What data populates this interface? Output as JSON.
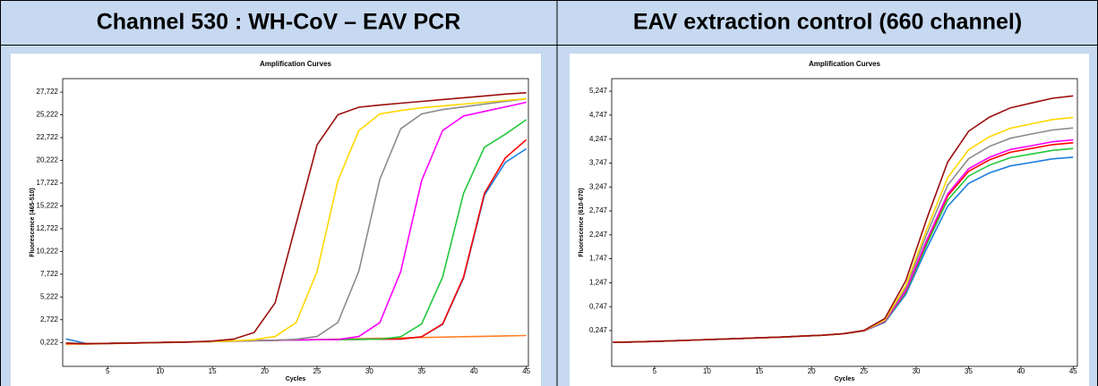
{
  "chart_data": [
    {
      "type": "line",
      "heading": "Channel 530 : WH-CoV – EAV PCR",
      "title": "Amplification Curves",
      "xlabel": "Cycles",
      "ylabel": "Fluorescence (465-510)",
      "x": [
        1,
        3,
        5,
        7,
        9,
        11,
        13,
        15,
        17,
        19,
        21,
        23,
        25,
        27,
        29,
        31,
        33,
        35,
        37,
        39,
        41,
        43,
        45
      ],
      "xlim": [
        0.7,
        45.2
      ],
      "xticks": [
        5,
        10,
        15,
        20,
        25,
        30,
        35,
        40,
        45
      ],
      "ylim": [
        -2400,
        29200
      ],
      "yticks": [
        {
          "value": 222,
          "label": "0,222"
        },
        {
          "value": 2722,
          "label": "2,722"
        },
        {
          "value": 5222,
          "label": "5,222"
        },
        {
          "value": 7722,
          "label": "7,722"
        },
        {
          "value": 10222,
          "label": "10,222"
        },
        {
          "value": 12722,
          "label": "12,722"
        },
        {
          "value": 15222,
          "label": "15,222"
        },
        {
          "value": 17722,
          "label": "17,722"
        },
        {
          "value": 20222,
          "label": "20,222"
        },
        {
          "value": 22722,
          "label": "22,722"
        },
        {
          "value": 25222,
          "label": "25,222"
        },
        {
          "value": 27722,
          "label": "27,722"
        }
      ],
      "series": [
        {
          "color": "#ff7f27",
          "values": [
            0,
            45,
            90,
            135,
            180,
            225,
            270,
            315,
            360,
            405,
            450,
            495,
            540,
            585,
            630,
            675,
            720,
            765,
            810,
            855,
            900,
            945,
            990
          ]
        },
        {
          "color": "#1e7fe0",
          "values": [
            600,
            100,
            120,
            160,
            200,
            240,
            280,
            330,
            380,
            430,
            470,
            500,
            520,
            540,
            560,
            580,
            600,
            845,
            2200,
            7300,
            16400,
            20000,
            21500
          ]
        },
        {
          "color": "#ff0000",
          "values": [
            150,
            80,
            120,
            160,
            200,
            240,
            280,
            330,
            380,
            430,
            470,
            500,
            520,
            540,
            560,
            580,
            600,
            845,
            2250,
            7400,
            16600,
            20500,
            22500
          ]
        },
        {
          "color": "#22c83c",
          "values": [
            150,
            80,
            120,
            160,
            200,
            240,
            280,
            330,
            380,
            430,
            470,
            500,
            520,
            540,
            560,
            580,
            845,
            2250,
            7400,
            16600,
            21660,
            23100,
            24700
          ]
        },
        {
          "color": "#ff00ff",
          "values": [
            150,
            80,
            120,
            160,
            200,
            240,
            280,
            330,
            380,
            430,
            470,
            500,
            520,
            540,
            875,
            2400,
            8000,
            18000,
            23500,
            25100,
            25600,
            26100,
            26600
          ]
        },
        {
          "color": "#8c8c8c",
          "values": [
            150,
            80,
            120,
            160,
            200,
            240,
            280,
            330,
            380,
            430,
            470,
            575,
            880,
            2415,
            8060,
            18140,
            23680,
            25320,
            25800,
            26100,
            26400,
            26700,
            27000
          ]
        },
        {
          "color": "#ffd700",
          "values": [
            150,
            80,
            120,
            160,
            200,
            240,
            280,
            330,
            400,
            525,
            875,
            2400,
            8000,
            18000,
            23500,
            25320,
            25700,
            26000,
            26200,
            26400,
            26600,
            26800,
            27000
          ]
        },
        {
          "color": "#9b0d0d",
          "values": [
            150,
            80,
            120,
            160,
            200,
            240,
            280,
            380,
            580,
            1320,
            4580,
            13250,
            21920,
            25240,
            26060,
            26300,
            26500,
            26700,
            26900,
            27100,
            27300,
            27500,
            27650
          ]
        }
      ]
    },
    {
      "type": "line",
      "heading": "EAV extraction control (660 channel)",
      "title": "Amplification Curves",
      "xlabel": "Cycles",
      "ylabel": "Fluorescence (610-670)",
      "x": [
        1,
        3,
        5,
        7,
        9,
        11,
        13,
        15,
        17,
        19,
        21,
        23,
        25,
        27,
        29,
        31,
        33,
        35,
        37,
        39,
        41,
        43,
        45
      ],
      "xlim": [
        0.9,
        45.4
      ],
      "xticks": [
        5,
        10,
        15,
        20,
        25,
        30,
        35,
        40,
        45
      ],
      "ylim": [
        -500,
        5510
      ],
      "yticks": [
        {
          "value": 247,
          "label": "0,247"
        },
        {
          "value": 747,
          "label": "0,747"
        },
        {
          "value": 1247,
          "label": "1,247"
        },
        {
          "value": 1747,
          "label": "1,747"
        },
        {
          "value": 2247,
          "label": "2,247"
        },
        {
          "value": 2747,
          "label": "2,747"
        },
        {
          "value": 3247,
          "label": "3,247"
        },
        {
          "value": 3747,
          "label": "3,747"
        },
        {
          "value": 4247,
          "label": "4,247"
        },
        {
          "value": 4747,
          "label": "4,747"
        },
        {
          "value": 5247,
          "label": "5,247"
        }
      ],
      "series": [
        {
          "color": "#1e7fe0",
          "values": [
            0,
            10,
            20,
            35,
            50,
            65,
            80,
            95,
            110,
            130,
            150,
            180,
            237,
            420,
            1007,
            1962,
            2842,
            3320,
            3540,
            3687,
            3760,
            3833,
            3870
          ]
        },
        {
          "color": "#22c83c",
          "values": [
            0,
            10,
            20,
            35,
            50,
            65,
            80,
            95,
            110,
            130,
            150,
            180,
            239,
            431,
            1047,
            2048,
            2972,
            3473,
            3704,
            3858,
            3935,
            4012,
            4050
          ]
        },
        {
          "color": "#ff0000",
          "values": [
            0,
            10,
            20,
            35,
            50,
            65,
            80,
            95,
            110,
            130,
            150,
            180,
            240,
            438,
            1073,
            2106,
            3058,
            3575,
            3813,
            3972,
            4051,
            4130,
            4170
          ]
        },
        {
          "color": "#ff00ff",
          "values": [
            0,
            10,
            20,
            35,
            50,
            65,
            80,
            95,
            110,
            130,
            150,
            180,
            240,
            442,
            1087,
            2134,
            3102,
            3626,
            3867,
            4029,
            4109,
            4190,
            4230
          ]
        },
        {
          "color": "#8c8c8c",
          "values": [
            0,
            10,
            20,
            35,
            50,
            65,
            80,
            95,
            110,
            130,
            150,
            180,
            243,
            457,
            1142,
            2254,
            3282,
            3838,
            4095,
            4266,
            4352,
            4437,
            4480
          ]
        },
        {
          "color": "#ffd700",
          "values": [
            0,
            10,
            20,
            35,
            50,
            65,
            80,
            95,
            110,
            130,
            150,
            180,
            245,
            470,
            1190,
            2360,
            3440,
            4025,
            4295,
            4475,
            4565,
            4655,
            4700
          ]
        },
        {
          "color": "#9b0d0d",
          "values": [
            0,
            10,
            20,
            35,
            50,
            65,
            80,
            95,
            110,
            130,
            150,
            180,
            250,
            500,
            1290,
            2575,
            3765,
            4410,
            4705,
            4900,
            5000,
            5100,
            5150
          ]
        }
      ]
    }
  ]
}
